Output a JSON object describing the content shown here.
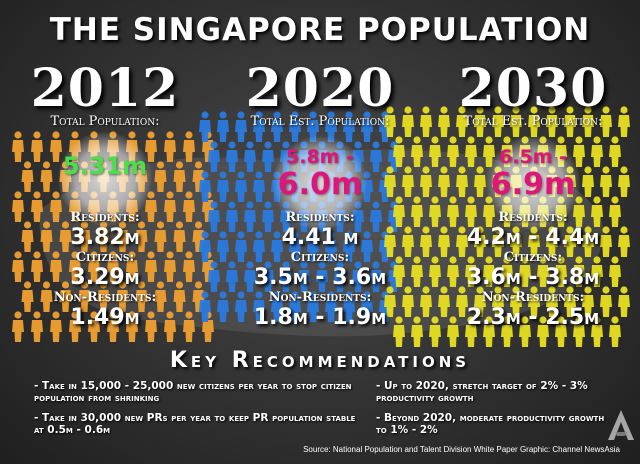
{
  "title": "THE SINGAPORE POPULATION",
  "columns": [
    {
      "year": "2012",
      "total_label": "Total  Population:",
      "total_line1": "5.31m",
      "total_line2": "",
      "residents_label": "Residents:",
      "residents_value": "3.82m",
      "citizens_label": "Citizens:",
      "citizens_value": "3.29m",
      "nonres_label": "Non-Residents:",
      "nonres_value": "1.49m"
    },
    {
      "year": "2020",
      "total_label": "Total Est. Population:",
      "total_line1": "5.8m -",
      "total_line2": "6.0m",
      "residents_label": "Residents:",
      "residents_value": "4.41 m",
      "citizens_label": "Citizens:",
      "citizens_value": "3.5m - 3.6m",
      "nonres_label": "Non-Residents:",
      "nonres_value": "1.8m - 1.9m"
    },
    {
      "year": "2030",
      "total_label": "Total Est. Population:",
      "total_line1": "6.5m -",
      "total_line2": "6.9m",
      "residents_label": "Residents:",
      "residents_value": "4.2m - 4.4m",
      "citizens_label": "Citizens:",
      "citizens_value": "3.6m - 3.8m",
      "nonres_label": "Non-Residents:",
      "nonres_value": "2.3m - 2.5m"
    }
  ],
  "key_title": "Key Recommendations",
  "recommendations": [
    "- Take in 15,000 - 25,000 new citizens per year to stop citizen population from shrinking",
    "- Up to 2020, stretch target of 2% - 3% productivity growth",
    "- Take in 30,000 new PRs per year to keep PR population stable at 0.5m - 0.6m",
    "- Beyond 2020, moderate productivity growth to 1% - 2%"
  ],
  "source": "Source: National Population and Talent Division White Paper  Graphic: Channel NewsAsia",
  "colors": {
    "orange_figures": "#f0a030",
    "blue_figures": "#2a7be0",
    "yellow_figures": "#e8e020",
    "green_value": "#4be04b",
    "magenta_value": "#e0157a"
  },
  "icons": [
    "person-figure-icon",
    "channel-newsasia-logo-icon"
  ]
}
